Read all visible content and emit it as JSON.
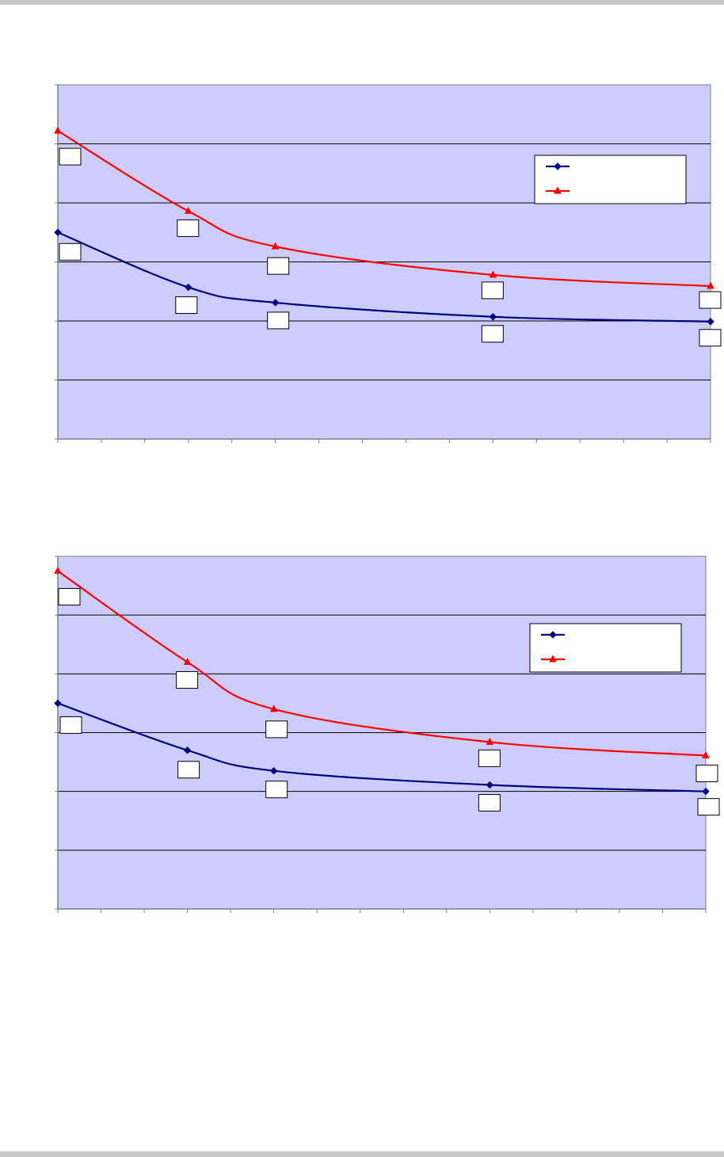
{
  "chart_data": [
    {
      "type": "line",
      "x": [
        0,
        3,
        5,
        10,
        15
      ],
      "ylim": [
        0,
        6
      ],
      "grid": true,
      "legend": "top-right",
      "series": [
        {
          "color": "#000080",
          "marker": "diamond",
          "values": [
            3.5,
            2.57,
            2.31,
            2.07,
            1.99
          ]
        },
        {
          "color": "#ff0000",
          "marker": "triangle",
          "values": [
            5.22,
            3.86,
            3.26,
            2.78,
            2.59
          ]
        }
      ]
    },
    {
      "type": "line",
      "x": [
        0,
        3,
        5,
        10,
        15
      ],
      "ylim": [
        0,
        6
      ],
      "grid": true,
      "legend": "top-right",
      "series": [
        {
          "color": "#000080",
          "marker": "diamond",
          "values": [
            3.5,
            2.7,
            2.35,
            2.11,
            2.0
          ]
        },
        {
          "color": "#ff0000",
          "marker": "triangle",
          "values": [
            5.75,
            4.2,
            3.4,
            2.84,
            2.61
          ]
        }
      ]
    }
  ]
}
